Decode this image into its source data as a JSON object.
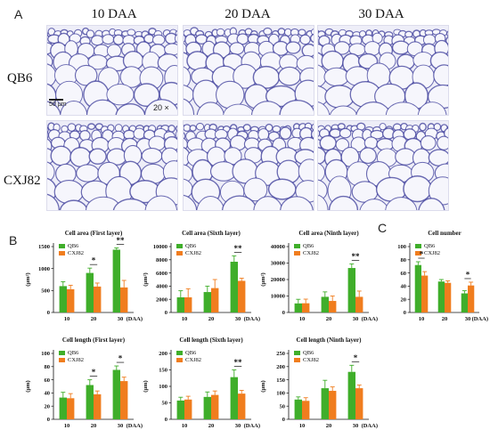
{
  "panels": {
    "A": "A",
    "B": "B",
    "C": "C"
  },
  "micrographs": {
    "columns": [
      "10 DAA",
      "20 DAA",
      "30 DAA"
    ],
    "rows": [
      "QB6",
      "CXJ82"
    ],
    "scale_bar": "50 μm",
    "magnification": "20 ×"
  },
  "colors": {
    "QB6": "#3fae2a",
    "CXJ82": "#f07d1e",
    "stain": "#3b3b9a",
    "stain_bg": "#eeeef8"
  },
  "chart_data": [
    {
      "id": "area1",
      "type": "bar",
      "title": "Cell area (First layer)",
      "ylabel": "(μm²)",
      "xlabel": "(DAA)",
      "categories": [
        "10",
        "20",
        "30"
      ],
      "ylim": [
        0,
        1500
      ],
      "yticks": [
        0,
        500,
        1000,
        1500
      ],
      "series": [
        {
          "name": "QB6",
          "values": [
            600,
            900,
            1430
          ],
          "err": [
            100,
            110,
            40
          ]
        },
        {
          "name": "CXJ82",
          "values": [
            530,
            590,
            570
          ],
          "err": [
            90,
            80,
            160
          ]
        }
      ],
      "annotations": [
        {
          "category": "20",
          "text": "*"
        },
        {
          "category": "30",
          "text": "**"
        }
      ]
    },
    {
      "id": "area6",
      "type": "bar",
      "title": "Cell area (Sixth layer)",
      "ylabel": "(μm²)",
      "xlabel": "(DAA)",
      "categories": [
        "10",
        "20",
        "30"
      ],
      "ylim": [
        0,
        10000
      ],
      "yticks": [
        0,
        2000,
        4000,
        6000,
        8000,
        10000
      ],
      "series": [
        {
          "name": "QB6",
          "values": [
            2300,
            3100,
            7700
          ],
          "err": [
            1000,
            900,
            900
          ]
        },
        {
          "name": "CXJ82",
          "values": [
            2300,
            3700,
            4800
          ],
          "err": [
            1300,
            1300,
            400
          ]
        }
      ],
      "annotations": [
        {
          "category": "30",
          "text": "**"
        }
      ]
    },
    {
      "id": "area9",
      "type": "bar",
      "title": "Cell area (Ninth layer)",
      "ylabel": "(μm²)",
      "xlabel": "(DAA)",
      "categories": [
        "10",
        "20",
        "30"
      ],
      "ylim": [
        0,
        40000
      ],
      "yticks": [
        0,
        10000,
        20000,
        30000,
        40000
      ],
      "series": [
        {
          "name": "QB6",
          "values": [
            5500,
            9500,
            27000
          ],
          "err": [
            2500,
            3000,
            2500
          ]
        },
        {
          "name": "CXJ82",
          "values": [
            5600,
            7000,
            9500
          ],
          "err": [
            2500,
            3000,
            3500
          ]
        }
      ],
      "annotations": [
        {
          "category": "30",
          "text": "**"
        }
      ]
    },
    {
      "id": "number",
      "type": "bar",
      "title": "Cell number",
      "ylabel": "",
      "xlabel": "(DAA)",
      "categories": [
        "10",
        "20",
        "30"
      ],
      "ylim": [
        0,
        100
      ],
      "yticks": [
        0,
        20,
        40,
        60,
        80,
        100
      ],
      "series": [
        {
          "name": "QB6",
          "values": [
            72,
            47,
            29
          ],
          "err": [
            5,
            3,
            4
          ]
        },
        {
          "name": "CXJ82",
          "values": [
            56,
            45,
            41
          ],
          "err": [
            6,
            3,
            5
          ]
        }
      ],
      "annotations": [
        {
          "category": "10",
          "text": "*"
        },
        {
          "category": "30",
          "text": "*"
        }
      ]
    },
    {
      "id": "len1",
      "type": "bar",
      "title": "Cell length (First layer)",
      "ylabel": "(μm)",
      "xlabel": "(DAA)",
      "categories": [
        "10",
        "20",
        "30"
      ],
      "ylim": [
        0,
        100
      ],
      "yticks": [
        0,
        20,
        40,
        60,
        80,
        100
      ],
      "series": [
        {
          "name": "QB6",
          "values": [
            33,
            52,
            75
          ],
          "err": [
            8,
            8,
            6
          ]
        },
        {
          "name": "CXJ82",
          "values": [
            32,
            38,
            58
          ],
          "err": [
            7,
            5,
            6
          ]
        }
      ],
      "annotations": [
        {
          "category": "20",
          "text": "*"
        },
        {
          "category": "30",
          "text": "*"
        }
      ]
    },
    {
      "id": "len6",
      "type": "bar",
      "title": "Cell length (Sixth layer)",
      "ylabel": "(μm)",
      "xlabel": "(DAA)",
      "categories": [
        "10",
        "20",
        "30"
      ],
      "ylim": [
        0,
        200
      ],
      "yticks": [
        0,
        50,
        100,
        150,
        200
      ],
      "series": [
        {
          "name": "QB6",
          "values": [
            57,
            68,
            128
          ],
          "err": [
            10,
            15,
            22
          ]
        },
        {
          "name": "CXJ82",
          "values": [
            60,
            74,
            78
          ],
          "err": [
            10,
            12,
            10
          ]
        }
      ],
      "annotations": [
        {
          "category": "30",
          "text": "**"
        }
      ]
    },
    {
      "id": "len9",
      "type": "bar",
      "title": "Cell length (Ninth layer)",
      "ylabel": "(μm)",
      "xlabel": "(DAA)",
      "categories": [
        "10",
        "20",
        "30"
      ],
      "ylim": [
        0,
        250
      ],
      "yticks": [
        0,
        50,
        100,
        150,
        200,
        250
      ],
      "series": [
        {
          "name": "QB6",
          "values": [
            75,
            118,
            180
          ],
          "err": [
            10,
            30,
            25
          ]
        },
        {
          "name": "CXJ82",
          "values": [
            70,
            108,
            118
          ],
          "err": [
            12,
            15,
            12
          ]
        }
      ],
      "annotations": [
        {
          "category": "30",
          "text": "*"
        }
      ]
    }
  ]
}
